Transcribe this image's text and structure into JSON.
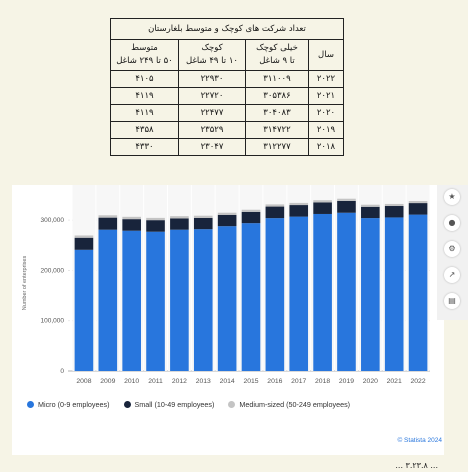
{
  "table": {
    "title": "تعداد شرکت های کوچک و متوسط بلغارستان",
    "headers": [
      {
        "line1": "سال",
        "line2": ""
      },
      {
        "line1": "خیلی کوچک",
        "line2": "تا ۹ شاغل"
      },
      {
        "line1": "کوچک",
        "line2": "۱۰ تا ۴۹ شاغل"
      },
      {
        "line1": "متوسط",
        "line2": "۵۰ تا ۲۴۹ شاغل"
      }
    ],
    "rows": [
      {
        "year": "۲۰۲۲",
        "micro": "۳۱۱۰۰۹",
        "small": "۲۲۹۳۰",
        "medium": "۴۱۰۵"
      },
      {
        "year": "۲۰۲۱",
        "micro": "۳۰۵۳۸۶",
        "small": "۲۲۷۲۰",
        "medium": "۴۱۱۹"
      },
      {
        "year": "۲۰۲۰",
        "micro": "۳۰۴۰۸۳",
        "small": "۲۲۴۷۷",
        "medium": "۴۱۱۹"
      },
      {
        "year": "۲۰۱۹",
        "micro": "۳۱۴۷۲۲",
        "small": "۲۳۵۲۹",
        "medium": "۴۳۵۸"
      },
      {
        "year": "۲۰۱۸",
        "micro": "۳۱۲۲۷۷",
        "small": "۲۳۰۴۷",
        "medium": "۴۳۳۰"
      }
    ]
  },
  "chart_data": {
    "type": "bar",
    "stacked": true,
    "categories": [
      "2008",
      "2009",
      "2010",
      "2011",
      "2012",
      "2013",
      "2014",
      "2015",
      "2016",
      "2017",
      "2018",
      "2019",
      "2020",
      "2021",
      "2022"
    ],
    "series": [
      {
        "name": "Micro (0-9 employees)",
        "color": "#2876dd",
        "values": [
          241000,
          281000,
          279000,
          277000,
          281000,
          282000,
          288000,
          294000,
          304000,
          307000,
          312277,
          314722,
          304083,
          305386,
          311009
        ]
      },
      {
        "name": "Small (10-49 employees)",
        "color": "#18243b",
        "values": [
          24000,
          24000,
          23000,
          23000,
          22500,
          22500,
          22500,
          22500,
          23000,
          23000,
          23047,
          23529,
          22477,
          22720,
          22930
        ]
      },
      {
        "name": "Medium-sized (50-249 employees)",
        "color": "#c4c4c4",
        "values": [
          4500,
          4700,
          4600,
          4500,
          4400,
          4300,
          4300,
          4200,
          4300,
          4300,
          4330,
          4358,
          4119,
          4119,
          4105
        ]
      }
    ],
    "ylabel": "Number of enterprises",
    "ylim": [
      0,
      350000
    ],
    "yticks": [
      0,
      100000,
      200000,
      300000
    ],
    "ytick_labels": [
      "0",
      "100,000",
      "200,000",
      "300,000"
    ],
    "grid": true,
    "legend": "bottom-left"
  },
  "credit": "© Statista 2024",
  "bottom_text": "... ۳.۲۳.۸ ..."
}
